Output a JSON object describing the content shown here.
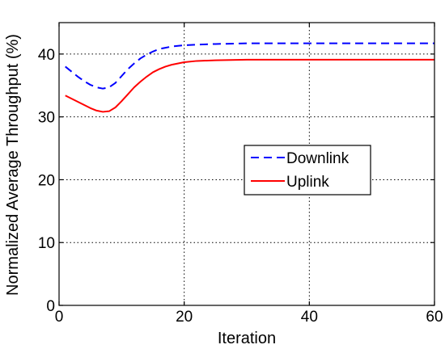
{
  "chart_data": {
    "type": "line",
    "title": "",
    "xlabel": "Iteration",
    "ylabel": "Normalized Average Throughput (%)",
    "xlim": [
      0,
      60
    ],
    "ylim": [
      0,
      45
    ],
    "xticks": [
      0,
      20,
      40,
      60
    ],
    "yticks": [
      0,
      10,
      20,
      30,
      40
    ],
    "xtick_labels": [
      "0",
      "20",
      "40",
      "60"
    ],
    "ytick_labels": [
      "0",
      "10",
      "20",
      "30",
      "40"
    ],
    "grid": true,
    "legend": {
      "placement": "center-right",
      "entries": [
        "Downlink",
        "Uplink"
      ]
    },
    "series": [
      {
        "name": "Downlink",
        "color": "#0000ff",
        "line_style": "dashed",
        "x": [
          1,
          2,
          3,
          4,
          5,
          6,
          7,
          8,
          9,
          10,
          11,
          12,
          13,
          14,
          15,
          16,
          17,
          18,
          20,
          22,
          25,
          30,
          35,
          40,
          45,
          50,
          55,
          60
        ],
        "y": [
          38.0,
          37.2,
          36.4,
          35.7,
          35.1,
          34.7,
          34.5,
          34.7,
          35.4,
          36.5,
          37.6,
          38.5,
          39.3,
          39.9,
          40.4,
          40.8,
          41.0,
          41.2,
          41.4,
          41.5,
          41.6,
          41.7,
          41.7,
          41.7,
          41.7,
          41.7,
          41.7,
          41.7
        ]
      },
      {
        "name": "Uplink",
        "color": "#ff0000",
        "line_style": "solid",
        "x": [
          1,
          2,
          3,
          4,
          5,
          6,
          7,
          8,
          9,
          10,
          11,
          12,
          13,
          14,
          15,
          16,
          17,
          18,
          20,
          22,
          25,
          30,
          35,
          40,
          45,
          50,
          55,
          60
        ],
        "y": [
          33.4,
          32.9,
          32.4,
          31.9,
          31.4,
          31.0,
          30.8,
          30.9,
          31.5,
          32.5,
          33.6,
          34.7,
          35.6,
          36.4,
          37.1,
          37.6,
          38.0,
          38.3,
          38.7,
          38.9,
          39.0,
          39.1,
          39.1,
          39.1,
          39.1,
          39.1,
          39.1,
          39.1
        ]
      }
    ]
  }
}
